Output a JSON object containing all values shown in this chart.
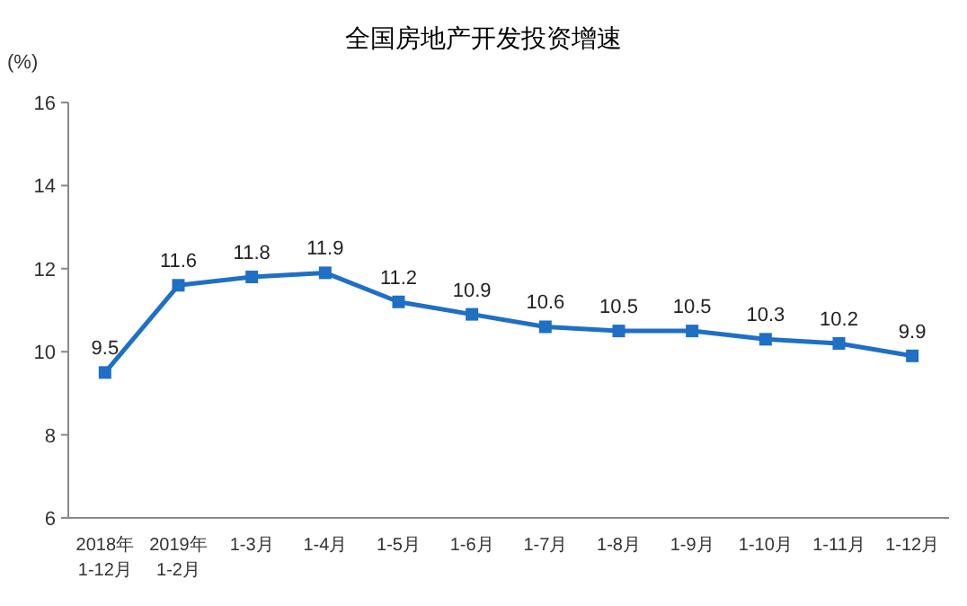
{
  "chart_data": {
    "type": "line",
    "title": "全国房地产开发投资增速",
    "ylabel": "(%)",
    "categories": [
      "2018年\n1-12月",
      "2019年\n1-2月",
      "1-3月",
      "1-4月",
      "1-5月",
      "1-6月",
      "1-7月",
      "1-8月",
      "1-9月",
      "1-10月",
      "1-11月",
      "1-12月"
    ],
    "series": [
      {
        "color": "#1f6fc5",
        "values": [
          9.5,
          11.6,
          11.8,
          11.9,
          11.2,
          10.9,
          10.6,
          10.5,
          10.5,
          10.3,
          10.2,
          9.9
        ]
      }
    ],
    "ylim": [
      6,
      16
    ],
    "yticks": [
      6,
      8,
      10,
      12,
      14,
      16
    ],
    "data_labels": true,
    "marker": "square",
    "line_style": "solid",
    "grid": false
  }
}
